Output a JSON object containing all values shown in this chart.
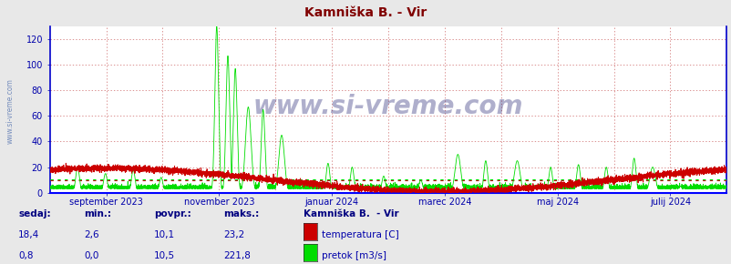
{
  "title": "Kamniška B. - Vir",
  "title_color": "#800000",
  "bg_color": "#e8e8e8",
  "plot_bg_color": "#ffffff",
  "grid_color": "#cc6666",
  "ylim": [
    0,
    130
  ],
  "yticks": [
    0,
    20,
    40,
    60,
    80,
    100,
    120
  ],
  "tick_color": "#0000aa",
  "xticklabels": [
    "september 2023",
    "november 2023",
    "januar 2024",
    "marec 2024",
    "maj 2024",
    "julij 2024"
  ],
  "watermark": "www.si-vreme.com",
  "sidebar_text": "www.si-vreme.com",
  "temp_color": "#cc0000",
  "flow_color": "#00dd00",
  "avg_temp_line": 10.1,
  "avg_flow_line": 10.5,
  "footer_labels": [
    "sedaj:",
    "min.:",
    "povpr.:",
    "maks.:"
  ],
  "footer_temp": [
    "18,4",
    "2,6",
    "10,1",
    "23,2"
  ],
  "footer_flow": [
    "0,8",
    "0,0",
    "10,5",
    "221,8"
  ],
  "legend_title": "Kamniška B.  - Vir",
  "legend_temp": "temperatura [C]",
  "legend_flow": "pretok [m3/s]",
  "border_color": "#0000cc",
  "spine_color": "#0000ff"
}
